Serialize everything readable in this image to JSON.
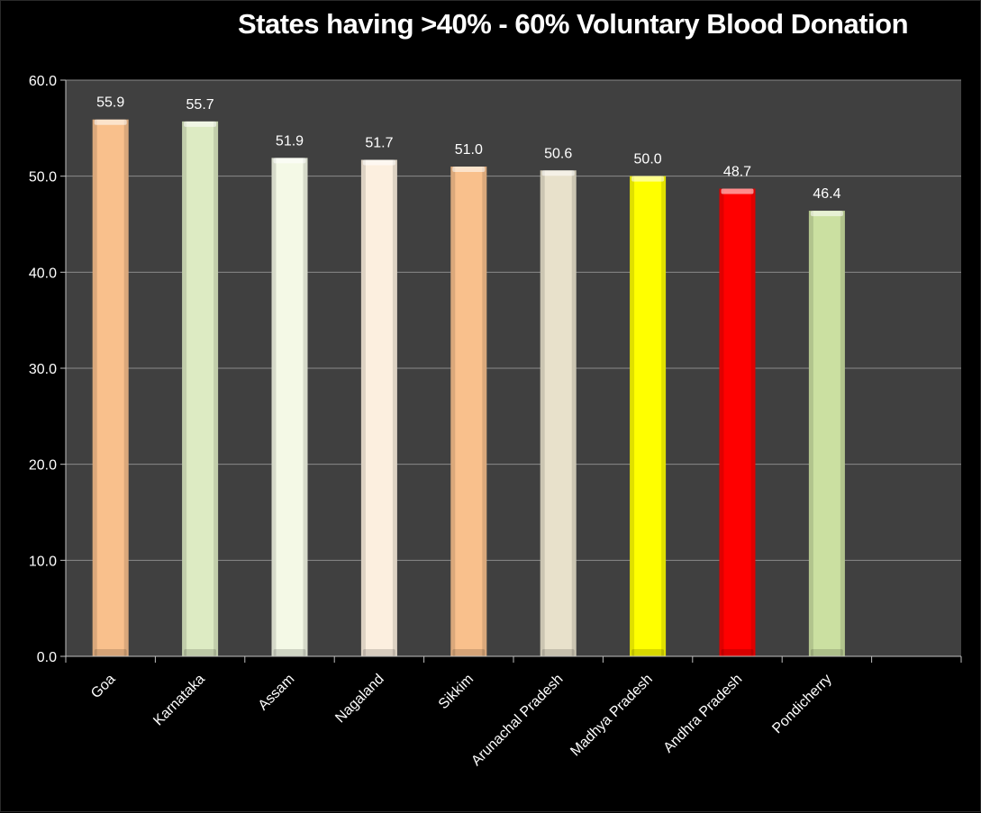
{
  "chart_data": {
    "type": "bar",
    "title": "States having >40% - 60% Voluntary Blood Donation",
    "xlabel": "",
    "ylabel": "",
    "ylim": [
      0,
      60
    ],
    "yticks": [
      "0.0",
      "10.0",
      "20.0",
      "30.0",
      "40.0",
      "50.0",
      "60.0"
    ],
    "grid": true,
    "legend": "none",
    "background": "#404040",
    "categories": [
      "Goa",
      "Karnataka",
      "Assam",
      "Nagaland",
      "Sikkim",
      "Arunachal Pradesh",
      "Madhya Pradesh",
      "Andhra Pradesh",
      "Pondicherry"
    ],
    "values": [
      55.9,
      55.7,
      51.9,
      51.7,
      51.0,
      50.6,
      50.0,
      48.7,
      46.4
    ],
    "value_labels": [
      "55.9",
      "55.7",
      "51.9",
      "51.7",
      "51.0",
      "50.6",
      "50.0",
      "48.7",
      "46.4"
    ],
    "colors": [
      "#F9C08C",
      "#DDEBC3",
      "#F4F9E6",
      "#FCEFDF",
      "#F9C08C",
      "#E8E1CB",
      "#FFFF00",
      "#FF0000",
      "#CBE0A1"
    ],
    "slots": 10
  }
}
